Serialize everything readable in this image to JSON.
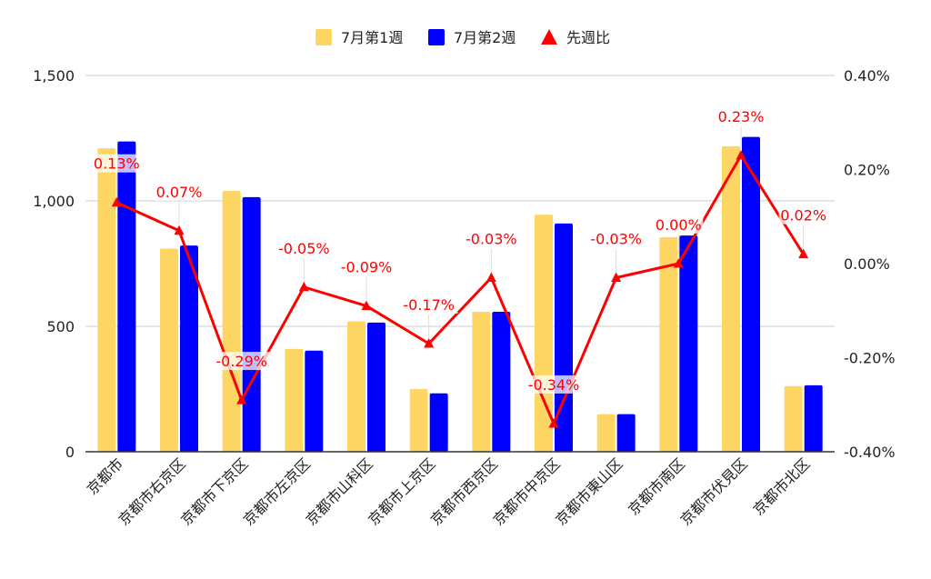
{
  "chart_data": {
    "type": "bar",
    "categories": [
      "京都市",
      "京都市右京区",
      "京都市下京区",
      "京都市左京区",
      "京都市山科区",
      "京都市上京区",
      "京都市西京区",
      "京都市中京区",
      "京都市東山区",
      "京都市南区",
      "京都市伏見区",
      "京都市北区"
    ],
    "series": [
      {
        "name": "7月第1週",
        "type": "bar",
        "axis": "left",
        "color": "#FDD663",
        "values": [
          1210,
          810,
          1040,
          410,
          520,
          250,
          558,
          945,
          150,
          855,
          1218,
          262
        ]
      },
      {
        "name": "7月第2週",
        "type": "bar",
        "axis": "left",
        "color": "#0000FF",
        "values": [
          1237,
          822,
          1015,
          403,
          515,
          233,
          558,
          910,
          150,
          862,
          1255,
          265
        ]
      },
      {
        "name": "先週比",
        "type": "line",
        "axis": "right",
        "color": "#FF0000",
        "marker": "triangle",
        "values": [
          0.13,
          0.07,
          -0.29,
          -0.05,
          -0.09,
          -0.17,
          -0.03,
          -0.34,
          -0.03,
          0.0,
          0.23,
          0.02
        ],
        "labels": [
          "0.13%",
          "0.07%",
          "-0.29%",
          "-0.05%",
          "-0.09%",
          "-0.17%",
          "-0.03%",
          "-0.34%",
          "-0.03%",
          "0.00%",
          "0.23%",
          "0.02%"
        ]
      }
    ],
    "y_left": {
      "ylim": [
        0,
        1500
      ],
      "ticks": [
        0,
        500,
        1000,
        1500
      ],
      "tick_labels": [
        "0",
        "500",
        "1,000",
        "1,500"
      ]
    },
    "y_right": {
      "ylim": [
        -0.4,
        0.4
      ],
      "ticks": [
        -0.4,
        -0.2,
        0.0,
        0.2,
        0.4
      ],
      "tick_labels": [
        "-0.40%",
        "-0.20%",
        "0.00%",
        "0.20%",
        "0.40%"
      ]
    },
    "grid": true,
    "legend_position": "top-center"
  }
}
